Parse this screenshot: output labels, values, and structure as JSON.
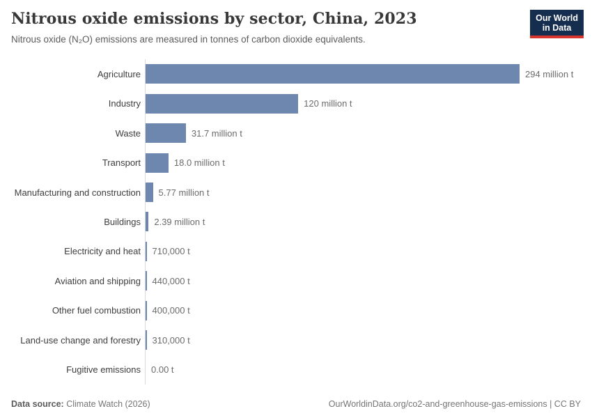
{
  "header": {
    "title": "Nitrous oxide emissions by sector, China, 2023",
    "subtitle": "Nitrous oxide (N₂O) emissions are measured in tonnes of carbon dioxide equivalents.",
    "logo": {
      "line1": "Our World",
      "line2": "in Data"
    }
  },
  "chart_data": {
    "type": "bar",
    "orientation": "horizontal",
    "title": "Nitrous oxide emissions by sector, China, 2023",
    "unit": "tonnes of carbon dioxide equivalents",
    "categories": [
      "Agriculture",
      "Industry",
      "Waste",
      "Transport",
      "Manufacturing and construction",
      "Buildings",
      "Electricity and heat",
      "Aviation and shipping",
      "Other fuel combustion",
      "Land-use change and forestry",
      "Fugitive emissions"
    ],
    "values": [
      294000000,
      120000000,
      31700000,
      18000000,
      5770000,
      2390000,
      710000,
      440000,
      400000,
      310000,
      0
    ],
    "value_labels": [
      "294 million t",
      "120 million t",
      "31.7 million t",
      "18.0 million t",
      "5.77 million t",
      "2.39 million t",
      "710,000 t",
      "440,000 t",
      "400,000 t",
      "310,000 t",
      "0.00 t"
    ],
    "xlim": [
      0,
      294000000
    ],
    "grid": false,
    "legend": "none",
    "bar_color": "#6e87ae"
  },
  "footer": {
    "data_source_label": "Data source:",
    "data_source_value": "Climate Watch (2026)",
    "attribution": "OurWorldinData.org/co2-and-greenhouse-gas-emissions | CC BY"
  },
  "colors": {
    "bar": "#6e87ae",
    "logo_bg": "#152d4f",
    "logo_accent": "#d7362f",
    "axis_line": "#dbdbdb"
  }
}
